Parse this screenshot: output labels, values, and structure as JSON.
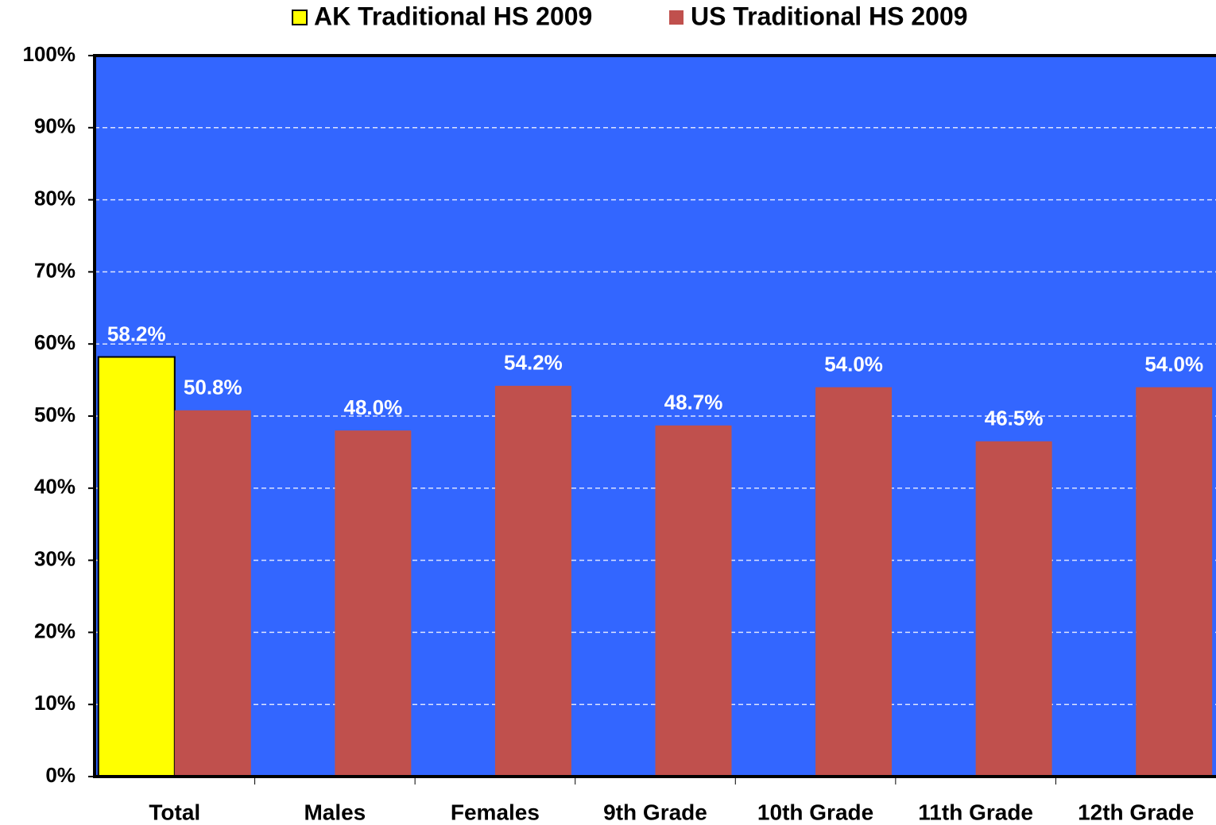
{
  "chart_data": {
    "type": "bar",
    "categories": [
      "Total",
      "Males",
      "Females",
      "9th Grade",
      "10th Grade",
      "11th Grade",
      "12th Grade"
    ],
    "series": [
      {
        "name": "AK Traditional HS 2009",
        "color": "#ffff00",
        "values": [
          58.2,
          null,
          null,
          null,
          null,
          null,
          null
        ],
        "value_labels": [
          "58.2%",
          null,
          null,
          null,
          null,
          null,
          null
        ]
      },
      {
        "name": "US Traditional HS 2009",
        "color": "#c0504d",
        "values": [
          50.8,
          48.0,
          54.2,
          48.7,
          54.0,
          46.5,
          54.0
        ],
        "value_labels": [
          "50.8%",
          "48.0%",
          "54.2%",
          "48.7%",
          "54.0%",
          "46.5%",
          "54.0%"
        ]
      }
    ],
    "ylim": [
      0,
      100
    ],
    "yticks": [
      {
        "value": 0,
        "label": "0%"
      },
      {
        "value": 10,
        "label": "10%"
      },
      {
        "value": 20,
        "label": "20%"
      },
      {
        "value": 30,
        "label": "30%"
      },
      {
        "value": 40,
        "label": "40%"
      },
      {
        "value": 50,
        "label": "50%"
      },
      {
        "value": 60,
        "label": "60%"
      },
      {
        "value": 70,
        "label": "70%"
      },
      {
        "value": 80,
        "label": "80%"
      },
      {
        "value": 90,
        "label": "90%"
      },
      {
        "value": 100,
        "label": "100%"
      }
    ],
    "grid": true,
    "background": "#3366ff",
    "legend": "top"
  }
}
